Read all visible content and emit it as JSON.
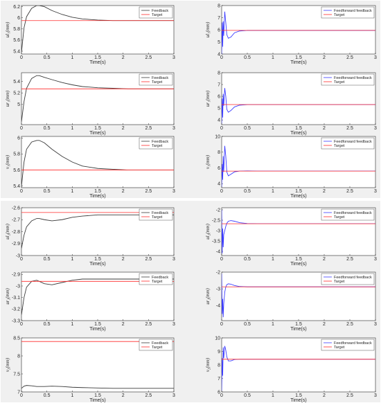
{
  "colors": {
    "feedback": "#3a3a3a",
    "feedforward": "#3b3bff",
    "target": "#ff2a2a",
    "panel_bg": "#f0f0f0"
  },
  "chart_data": [
    {
      "type": "line",
      "ylabel": "ul₁(mm)",
      "xlabel": "Time(s)",
      "xlim": [
        0,
        3
      ],
      "ylim": [
        5.35,
        6.22
      ],
      "yticks": [
        "5.4",
        "5.6",
        "5.8",
        "6",
        "6.2"
      ],
      "xticks": [
        "0",
        "0.5",
        "1",
        "1.5",
        "2",
        "2.5",
        "3"
      ],
      "series": [
        {
          "name": "Feedback",
          "x": [
            0,
            0.05,
            0.1,
            0.2,
            0.3,
            0.35,
            0.45,
            0.6,
            0.8,
            1,
            1.2,
            1.5,
            1.8,
            2.1,
            2.5,
            3
          ],
          "y": [
            5.38,
            5.82,
            6.02,
            6.17,
            6.22,
            6.22,
            6.2,
            6.13,
            6.06,
            6.01,
            5.98,
            5.96,
            5.95,
            5.95,
            5.95,
            5.95
          ]
        },
        {
          "name": "Target",
          "x": [
            0,
            3
          ],
          "y": [
            5.95,
            5.95
          ]
        }
      ]
    },
    {
      "type": "line",
      "ylabel": "ul₁(mm)",
      "xlabel": "Time(s)",
      "xlim": [
        0,
        3
      ],
      "ylim": [
        4,
        8
      ],
      "yticks": [
        "4",
        "5",
        "6",
        "7",
        "8"
      ],
      "xticks": [
        "0",
        "0.5",
        "1",
        "1.5",
        "2",
        "2.5",
        "3"
      ],
      "series": [
        {
          "name": "Feedforward feedback",
          "x": [
            0,
            0.01,
            0.02,
            0.03,
            0.04,
            0.06,
            0.08,
            0.1,
            0.13,
            0.18,
            0.25,
            0.35,
            0.5,
            0.7,
            1,
            3
          ],
          "y": [
            4,
            6.6,
            4.6,
            6.7,
            5.5,
            7.5,
            6.6,
            5.6,
            5.3,
            5.4,
            5.75,
            5.9,
            5.95,
            5.95,
            5.95,
            5.95
          ]
        },
        {
          "name": "Target",
          "x": [
            0,
            3
          ],
          "y": [
            5.95,
            5.95
          ]
        }
      ]
    },
    {
      "type": "line",
      "ylabel": "ur₁(mm)",
      "xlabel": "Time(s)",
      "xlim": [
        0,
        3
      ],
      "ylim": [
        4.65,
        5.55
      ],
      "yticks": [
        "5",
        "5.2",
        "5.4"
      ],
      "xticks": [
        "0",
        "0.5",
        "1",
        "1.5",
        "2",
        "2.5",
        "3"
      ],
      "series": [
        {
          "name": "Feedback",
          "x": [
            0,
            0.05,
            0.1,
            0.2,
            0.3,
            0.35,
            0.45,
            0.6,
            0.8,
            1,
            1.2,
            1.5,
            1.8,
            2.1,
            2.5,
            3
          ],
          "y": [
            4.7,
            5.05,
            5.28,
            5.45,
            5.5,
            5.5,
            5.47,
            5.43,
            5.38,
            5.34,
            5.31,
            5.29,
            5.28,
            5.27,
            5.27,
            5.27
          ]
        },
        {
          "name": "Target",
          "x": [
            0,
            3
          ],
          "y": [
            5.27,
            5.27
          ]
        }
      ]
    },
    {
      "type": "line",
      "ylabel": "ur₁(mm)",
      "xlabel": "Time(s)",
      "xlim": [
        0,
        3
      ],
      "ylim": [
        3.6,
        8
      ],
      "yticks": [
        "4",
        "5",
        "6",
        "7",
        "8"
      ],
      "xticks": [
        "0",
        "0.5",
        "1",
        "1.5",
        "2",
        "2.5",
        "3"
      ],
      "series": [
        {
          "name": "Feedforward feedback",
          "x": [
            0,
            0.01,
            0.02,
            0.03,
            0.04,
            0.06,
            0.08,
            0.1,
            0.13,
            0.18,
            0.25,
            0.35,
            0.5,
            0.7,
            1,
            3
          ],
          "y": [
            3.7,
            5.8,
            4.2,
            6.2,
            5.2,
            6.7,
            6,
            4.9,
            4.65,
            4.8,
            5.1,
            5.25,
            5.3,
            5.3,
            5.3,
            5.3
          ]
        },
        {
          "name": "Target",
          "x": [
            0,
            3
          ],
          "y": [
            5.3,
            5.3
          ]
        }
      ]
    },
    {
      "type": "line",
      "ylabel": "v₁(mm)",
      "xlabel": "Time(s)",
      "xlim": [
        0,
        3
      ],
      "ylim": [
        5.38,
        6.02
      ],
      "yticks": [
        "5.4",
        "5.6",
        "5.8",
        "6"
      ],
      "xticks": [
        "0",
        "0.5",
        "1",
        "1.5",
        "2",
        "2.5",
        "3"
      ],
      "series": [
        {
          "name": "Feedback",
          "x": [
            0,
            0.05,
            0.1,
            0.2,
            0.3,
            0.35,
            0.45,
            0.6,
            0.8,
            1,
            1.2,
            1.5,
            1.8,
            2.1,
            2.5,
            3
          ],
          "y": [
            5.4,
            5.7,
            5.86,
            5.95,
            5.97,
            5.97,
            5.94,
            5.86,
            5.77,
            5.7,
            5.65,
            5.62,
            5.61,
            5.6,
            5.6,
            5.6
          ]
        },
        {
          "name": "Target",
          "x": [
            0,
            3
          ],
          "y": [
            5.6,
            5.6
          ]
        }
      ]
    },
    {
      "type": "line",
      "ylabel": "v₁(mm)",
      "xlabel": "Time(s)",
      "xlim": [
        0,
        3
      ],
      "ylim": [
        3.5,
        10
      ],
      "yticks": [
        "4",
        "6",
        "8",
        "10"
      ],
      "xticks": [
        "0",
        "0.5",
        "1",
        "1.5",
        "2",
        "2.5",
        "3"
      ],
      "series": [
        {
          "name": "Feedforward feedback",
          "x": [
            0,
            0.01,
            0.02,
            0.03,
            0.04,
            0.06,
            0.08,
            0.1,
            0.13,
            0.18,
            0.25,
            0.35,
            0.5,
            0.7,
            1,
            3
          ],
          "y": [
            3.6,
            6.5,
            4.5,
            7.5,
            5.5,
            8.8,
            7.5,
            5.5,
            5,
            5.2,
            5.5,
            5.6,
            5.62,
            5.6,
            5.6,
            5.6
          ]
        },
        {
          "name": "Target",
          "x": [
            0,
            3
          ],
          "y": [
            5.6,
            5.6
          ]
        }
      ]
    },
    {
      "type": "line",
      "ylabel": "ul₂(mm)",
      "xlabel": "Time(s)",
      "xlim": [
        0,
        3
      ],
      "ylim": [
        -3,
        -2.6
      ],
      "yticks": [
        "-3",
        "-2.9",
        "-2.8",
        "-2.7",
        "-2.6"
      ],
      "xticks": [
        "0",
        "0.5",
        "1",
        "1.5",
        "2",
        "2.5",
        "3"
      ],
      "series": [
        {
          "name": "Feedback",
          "x": [
            0,
            0.05,
            0.1,
            0.2,
            0.3,
            0.35,
            0.45,
            0.6,
            0.8,
            1,
            1.2,
            1.5,
            1.8,
            2.1,
            2.5,
            3
          ],
          "y": [
            -2.94,
            -2.83,
            -2.76,
            -2.71,
            -2.69,
            -2.69,
            -2.7,
            -2.71,
            -2.7,
            -2.68,
            -2.67,
            -2.66,
            -2.66,
            -2.66,
            -2.66,
            -2.66
          ]
        },
        {
          "name": "Target",
          "x": [
            0,
            3
          ],
          "y": [
            -2.64,
            -2.64
          ]
        }
      ]
    },
    {
      "type": "line",
      "ylabel": "ul₂(mm)",
      "xlabel": "Time(s)",
      "xlim": [
        0,
        3
      ],
      "ylim": [
        -4.2,
        -1.9
      ],
      "yticks": [
        "-4",
        "-3.5",
        "-3",
        "-2.5",
        "-2"
      ],
      "xticks": [
        "0",
        "0.5",
        "1",
        "1.5",
        "2",
        "2.5",
        "3"
      ],
      "series": [
        {
          "name": "Feedforward feedback",
          "x": [
            0,
            0.01,
            0.02,
            0.03,
            0.04,
            0.06,
            0.08,
            0.1,
            0.13,
            0.18,
            0.25,
            0.35,
            0.5,
            0.7,
            1,
            3
          ],
          "y": [
            -2,
            -4.1,
            -2.9,
            -3.8,
            -3.2,
            -3,
            -2.8,
            -2.65,
            -2.55,
            -2.52,
            -2.55,
            -2.62,
            -2.66,
            -2.67,
            -2.67,
            -2.67
          ]
        },
        {
          "name": "Target",
          "x": [
            0,
            3
          ],
          "y": [
            -2.67,
            -2.67
          ]
        }
      ]
    },
    {
      "type": "line",
      "ylabel": "ur₂(mm)",
      "xlabel": "Time(s)",
      "xlim": [
        0,
        3
      ],
      "ylim": [
        -3.3,
        -2.88
      ],
      "yticks": [
        "-3.3",
        "-3.2",
        "-3.1",
        "-3",
        "-2.9"
      ],
      "xticks": [
        "0",
        "0.5",
        "1",
        "1.5",
        "2",
        "2.5",
        "3"
      ],
      "series": [
        {
          "name": "Feedback",
          "x": [
            0,
            0.05,
            0.1,
            0.2,
            0.3,
            0.35,
            0.45,
            0.6,
            0.8,
            1,
            1.2,
            1.5,
            1.8,
            2.1,
            2.5,
            3
          ],
          "y": [
            -3.25,
            -3.1,
            -3.01,
            -2.96,
            -2.95,
            -2.96,
            -2.98,
            -2.99,
            -2.97,
            -2.95,
            -2.94,
            -2.94,
            -2.94,
            -2.94,
            -2.94,
            -2.94
          ]
        },
        {
          "name": "Target",
          "x": [
            0,
            3
          ],
          "y": [
            -2.96,
            -2.96
          ]
        }
      ]
    },
    {
      "type": "line",
      "ylabel": "ur₂(mm)",
      "xlabel": "Time(s)",
      "xlim": [
        0,
        3
      ],
      "ylim": [
        -4.9,
        -2
      ],
      "yticks": [
        "-4",
        "-3",
        "-2"
      ],
      "xticks": [
        "0",
        "0.5",
        "1",
        "1.5",
        "2",
        "2.5",
        "3"
      ],
      "series": [
        {
          "name": "Feedforward feedback",
          "x": [
            0,
            0.01,
            0.02,
            0.03,
            0.04,
            0.06,
            0.08,
            0.1,
            0.13,
            0.18,
            0.25,
            0.35,
            0.5,
            0.7,
            1,
            3
          ],
          "y": [
            -2.1,
            -4.5,
            -3.6,
            -4.7,
            -3.9,
            -3.2,
            -2.9,
            -2.75,
            -2.7,
            -2.72,
            -2.8,
            -2.86,
            -2.88,
            -2.88,
            -2.88,
            -2.88
          ]
        },
        {
          "name": "Target",
          "x": [
            0,
            3
          ],
          "y": [
            -2.88,
            -2.88
          ]
        }
      ]
    },
    {
      "type": "line",
      "ylabel": "v₂(mm)",
      "xlabel": "Time(s)",
      "xlim": [
        0,
        3
      ],
      "ylim": [
        7,
        8.5
      ],
      "yticks": [
        "7",
        "7.5",
        "8",
        "8.5"
      ],
      "xticks": [
        "0",
        "0.5",
        "1",
        "1.5",
        "2",
        "2.5",
        "3"
      ],
      "series": [
        {
          "name": "Feedback",
          "x": [
            0,
            0.05,
            0.1,
            0.2,
            0.3,
            0.35,
            0.45,
            0.6,
            0.8,
            1,
            1.2,
            1.5,
            1.8,
            2.1,
            2.5,
            3
          ],
          "y": [
            7.1,
            7.16,
            7.18,
            7.17,
            7.15,
            7.15,
            7.15,
            7.16,
            7.15,
            7.13,
            7.12,
            7.11,
            7.1,
            7.1,
            7.1,
            7.1
          ]
        },
        {
          "name": "Target",
          "x": [
            0,
            3
          ],
          "y": [
            8.4,
            8.4
          ]
        }
      ]
    },
    {
      "type": "line",
      "ylabel": "v₂(mm)",
      "xlabel": "Time(s)",
      "xlim": [
        0,
        3
      ],
      "ylim": [
        6,
        10
      ],
      "yticks": [
        "6",
        "7",
        "8",
        "9",
        "10"
      ],
      "xticks": [
        "0",
        "0.5",
        "1",
        "1.5",
        "2",
        "2.5",
        "3"
      ],
      "series": [
        {
          "name": "Feedforward feedback",
          "x": [
            0,
            0.01,
            0.02,
            0.03,
            0.04,
            0.06,
            0.08,
            0.1,
            0.13,
            0.18,
            0.25,
            0.35,
            0.5,
            0.7,
            1,
            3
          ],
          "y": [
            6.1,
            8.5,
            7.2,
            9.3,
            8.5,
            9.4,
            9.1,
            8.6,
            8.3,
            8.3,
            8.4,
            8.42,
            8.42,
            8.42,
            8.42,
            8.42
          ]
        },
        {
          "name": "Target",
          "x": [
            0,
            3
          ],
          "y": [
            8.42,
            8.42
          ]
        }
      ]
    }
  ]
}
